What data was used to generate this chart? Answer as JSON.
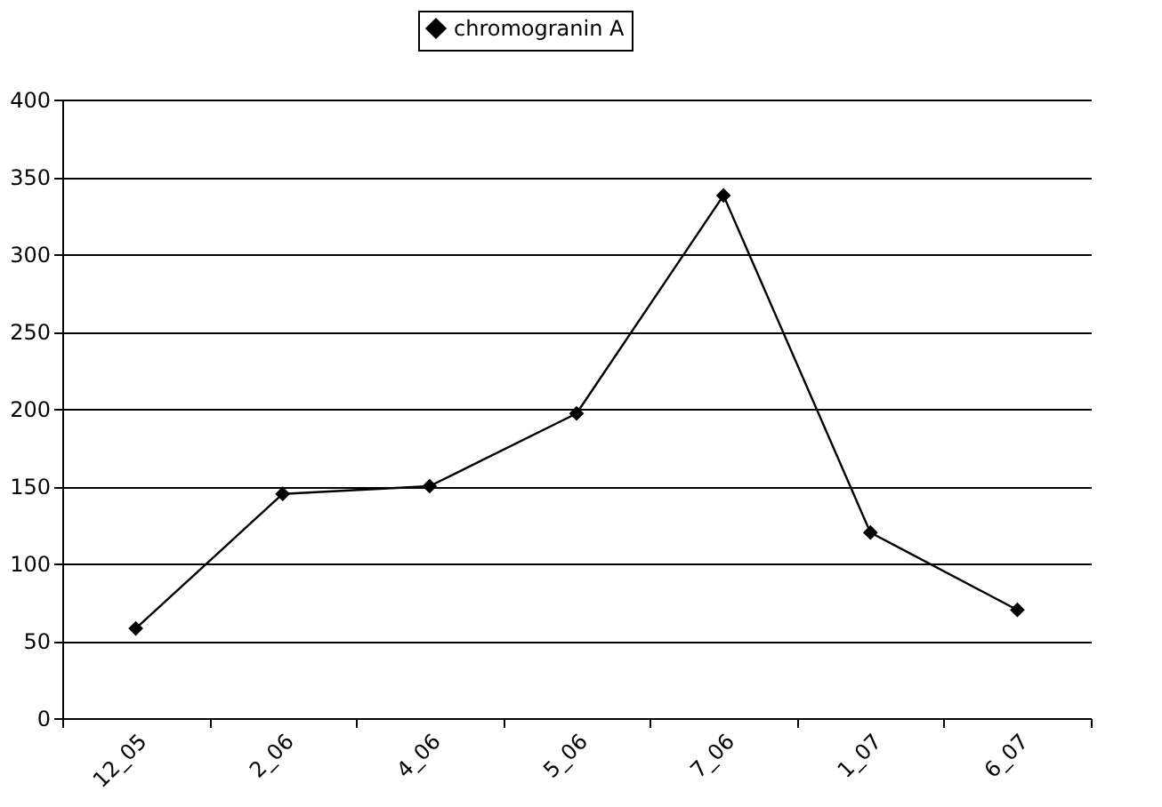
{
  "chart_data": {
    "type": "line",
    "categories": [
      "12_05",
      "2_06",
      "4_06",
      "5_06",
      "7_06",
      "1_07",
      "6_07"
    ],
    "series": [
      {
        "name": "chromogranin A",
        "color": "#000000",
        "values": [
          58,
          145,
          150,
          197,
          338,
          120,
          70
        ]
      }
    ],
    "ylim": [
      0,
      400
    ],
    "yticks": [
      0,
      50,
      100,
      150,
      200,
      250,
      300,
      350,
      400
    ],
    "grid": "y",
    "legend": "top",
    "marker": "diamond",
    "line_style": "solid"
  }
}
